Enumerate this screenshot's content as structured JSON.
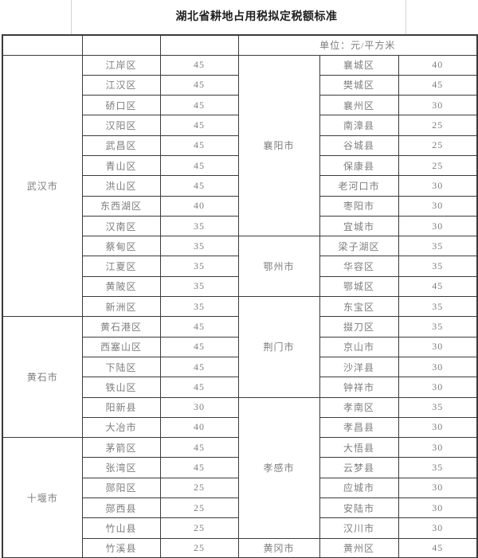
{
  "title": "湖北省耕地占用税拟定税额标准",
  "unit_label": "单位：元/平方米",
  "left_groups": [
    {
      "city": "武汉市",
      "rows": [
        {
          "district": "江岸区",
          "value": "45"
        },
        {
          "district": "江汉区",
          "value": "45"
        },
        {
          "district": "硚口区",
          "value": "45"
        },
        {
          "district": "汉阳区",
          "value": "45"
        },
        {
          "district": "武昌区",
          "value": "45"
        },
        {
          "district": "青山区",
          "value": "45"
        },
        {
          "district": "洪山区",
          "value": "45"
        },
        {
          "district": "东西湖区",
          "value": "40"
        },
        {
          "district": "汉南区",
          "value": "35"
        },
        {
          "district": "蔡甸区",
          "value": "35"
        },
        {
          "district": "江夏区",
          "value": "35"
        },
        {
          "district": "黄陂区",
          "value": "35"
        },
        {
          "district": "新洲区",
          "value": "35"
        }
      ]
    },
    {
      "city": "黄石市",
      "rows": [
        {
          "district": "黄石港区",
          "value": "45"
        },
        {
          "district": "西塞山区",
          "value": "45"
        },
        {
          "district": "下陆区",
          "value": "45"
        },
        {
          "district": "铁山区",
          "value": "45"
        },
        {
          "district": "阳新县",
          "value": "30"
        },
        {
          "district": "大冶市",
          "value": "40"
        }
      ]
    },
    {
      "city": "十堰市",
      "rows": [
        {
          "district": "茅箭区",
          "value": "45"
        },
        {
          "district": "张湾区",
          "value": "45"
        },
        {
          "district": "郧阳区",
          "value": "25"
        },
        {
          "district": "郧西县",
          "value": "25"
        },
        {
          "district": "竹山县",
          "value": "25"
        },
        {
          "district": "竹溪县",
          "value": "25"
        }
      ]
    }
  ],
  "right_groups": [
    {
      "city": "襄阳市",
      "rows": [
        {
          "district": "襄城区",
          "value": "40"
        },
        {
          "district": "樊城区",
          "value": "45"
        },
        {
          "district": "襄州区",
          "value": "30"
        },
        {
          "district": "南漳县",
          "value": "25"
        },
        {
          "district": "谷城县",
          "value": "25"
        },
        {
          "district": "保康县",
          "value": "25"
        },
        {
          "district": "老河口市",
          "value": "30"
        },
        {
          "district": "枣阳市",
          "value": "30"
        },
        {
          "district": "宜城市",
          "value": "30"
        }
      ]
    },
    {
      "city": "鄂州市",
      "rows": [
        {
          "district": "梁子湖区",
          "value": "35"
        },
        {
          "district": "华容区",
          "value": "35"
        },
        {
          "district": "鄂城区",
          "value": "45"
        }
      ]
    },
    {
      "city": "荆门市",
      "rows": [
        {
          "district": "东宝区",
          "value": "35"
        },
        {
          "district": "掇刀区",
          "value": "35"
        },
        {
          "district": "京山市",
          "value": "30"
        },
        {
          "district": "沙洋县",
          "value": "30"
        },
        {
          "district": "钟祥市",
          "value": "30"
        }
      ]
    },
    {
      "city": "孝感市",
      "rows": [
        {
          "district": "孝南区",
          "value": "35"
        },
        {
          "district": "孝昌县",
          "value": "30"
        },
        {
          "district": "大悟县",
          "value": "30"
        },
        {
          "district": "云梦县",
          "value": "35"
        },
        {
          "district": "应城市",
          "value": "30"
        },
        {
          "district": "安陆市",
          "value": "30"
        },
        {
          "district": "汉川市",
          "value": "30"
        }
      ]
    },
    {
      "city": "黄冈市",
      "rows": [
        {
          "district": "黄州区",
          "value": "45"
        }
      ]
    }
  ]
}
